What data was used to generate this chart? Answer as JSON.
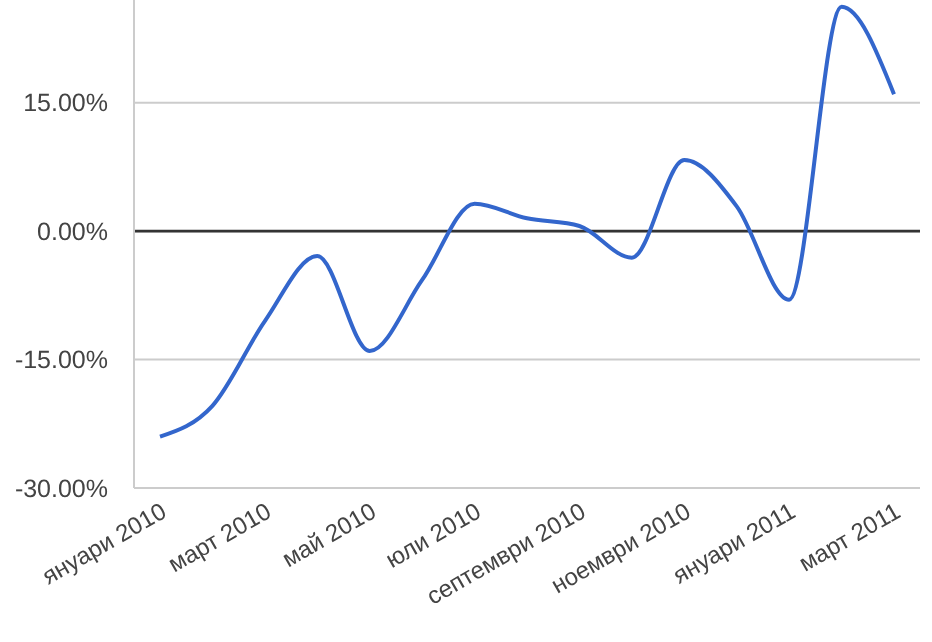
{
  "chart_data": {
    "type": "line",
    "categories": [
      "януари 2010",
      null,
      "март 2010",
      null,
      "май 2010",
      null,
      "юли 2010",
      null,
      "септември 2010",
      null,
      "ноември 2010",
      null,
      "януари 2011",
      null,
      "март 2011"
    ],
    "series": [
      {
        "color": "#3366cc",
        "values": [
          -24,
          -20.4,
          -10.5,
          -2.9,
          -14,
          -5.7,
          3.2,
          1.5,
          0.6,
          -3.1,
          8.3,
          2.9,
          -8,
          26.2,
          16
        ]
      }
    ],
    "ylim": [
      -30,
      27
    ],
    "yticks": [
      {
        "value": -30,
        "label": "-30.00%"
      },
      {
        "value": -15,
        "label": "-15.00%"
      },
      {
        "value": 0,
        "label": "0.00%"
      },
      {
        "value": 15,
        "label": "15.00%"
      }
    ],
    "grid": "y",
    "ref_lines": [
      {
        "axis": "y",
        "value": 0,
        "color": "#333333"
      }
    ],
    "marker": "none",
    "line_style": "solid"
  }
}
